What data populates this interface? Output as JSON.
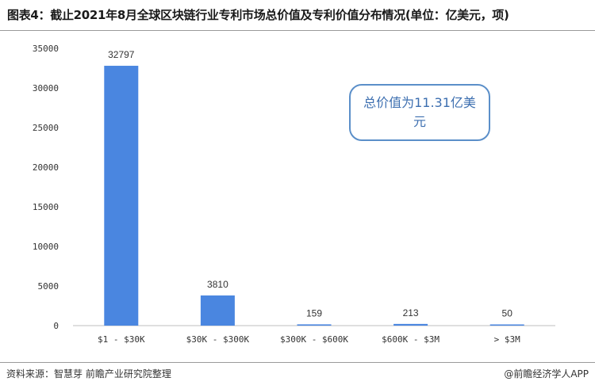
{
  "title": "图表4：截止2021年8月全球区块链行业专利市场总价值及专利价值分布情况(单位：亿美元，项)",
  "annotation": "总价值为11.31亿美元",
  "footer": {
    "source": "资料来源：智慧芽 前瞻产业研究院整理",
    "brand": "@前瞻经济学人APP"
  },
  "chart_data": {
    "type": "bar",
    "categories": [
      "$1 - $30K",
      "$30K - $300K",
      "$300K - $600K",
      "$600K - $3M",
      "> $3M"
    ],
    "values": [
      32797,
      3810,
      159,
      213,
      50
    ],
    "data_labels": [
      "32797",
      "3810",
      "159",
      "213",
      "50"
    ],
    "title": "",
    "xlabel": "",
    "ylabel": "",
    "ylim": [
      0,
      35000
    ],
    "yticks": [
      "0",
      "5000",
      "10000",
      "15000",
      "20000",
      "25000",
      "30000",
      "35000"
    ],
    "grid": false,
    "legend": "none",
    "bar_color": "#4a86e0"
  }
}
